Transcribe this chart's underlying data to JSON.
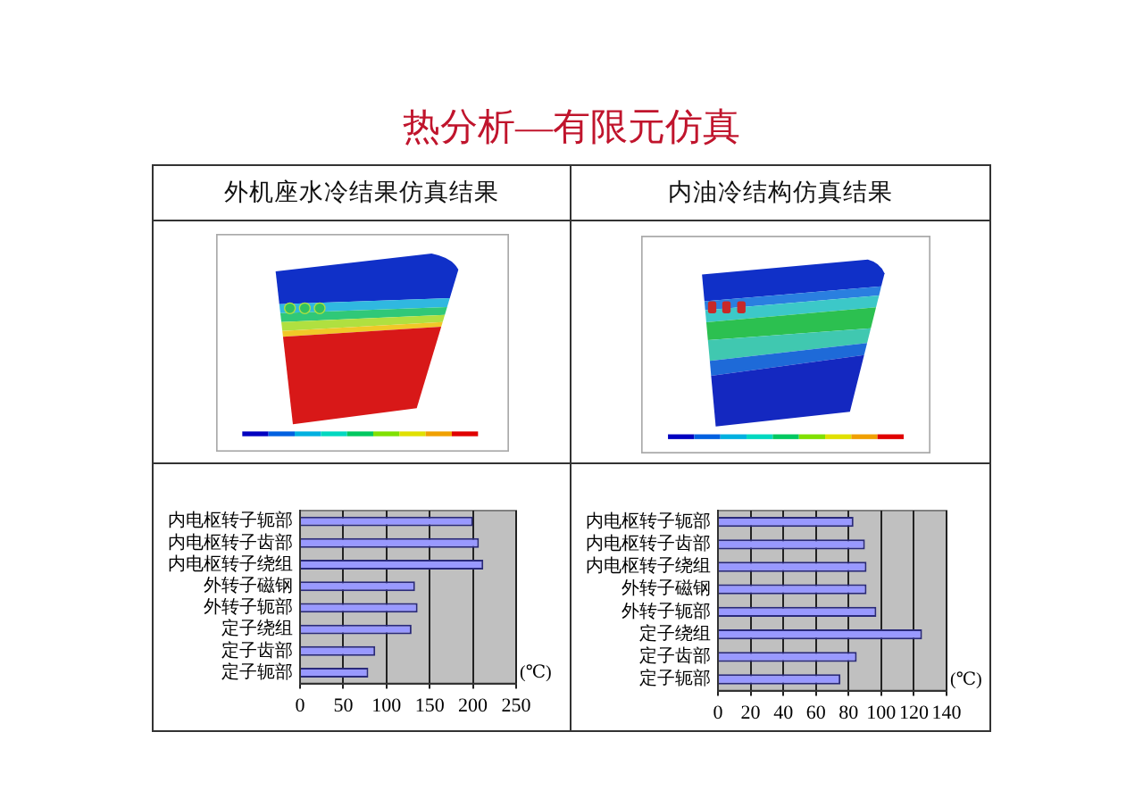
{
  "chart_data": [
    {
      "type": "other",
      "title": "热分析—有限元仿真"
    },
    {
      "type": "bar",
      "title": "外机座水冷结果仿真结果",
      "orientation": "horizontal",
      "categories": [
        "内电枢转子轭部",
        "内电枢转子齿部",
        "内电枢转子绕组",
        "外转子磁钢",
        "外转子轭部",
        "定子绕组",
        "定子齿部",
        "定子轭部"
      ],
      "values": [
        200,
        207,
        212,
        133,
        136,
        129,
        87,
        79
      ],
      "color": "#9999ff",
      "xlabel": "(℃)",
      "xlim": [
        0,
        250
      ],
      "xticks": [
        0,
        50,
        100,
        150,
        200,
        250
      ],
      "grid": "x"
    },
    {
      "type": "bar",
      "title": "内油冷结构仿真结果",
      "orientation": "horizontal",
      "categories": [
        "内电枢转子轭部",
        "内电枢转子齿部",
        "内电枢转子绕组",
        "外转子磁钢",
        "外转子轭部",
        "定子绕组",
        "定子齿部",
        "定子轭部"
      ],
      "values": [
        83,
        90,
        91,
        91,
        97,
        125,
        85,
        75
      ],
      "color": "#9999ff",
      "xlabel": "(℃)",
      "xlim": [
        0,
        140
      ],
      "xticks": [
        0,
        20,
        40,
        60,
        80,
        100,
        120,
        140
      ],
      "grid": "x"
    }
  ]
}
